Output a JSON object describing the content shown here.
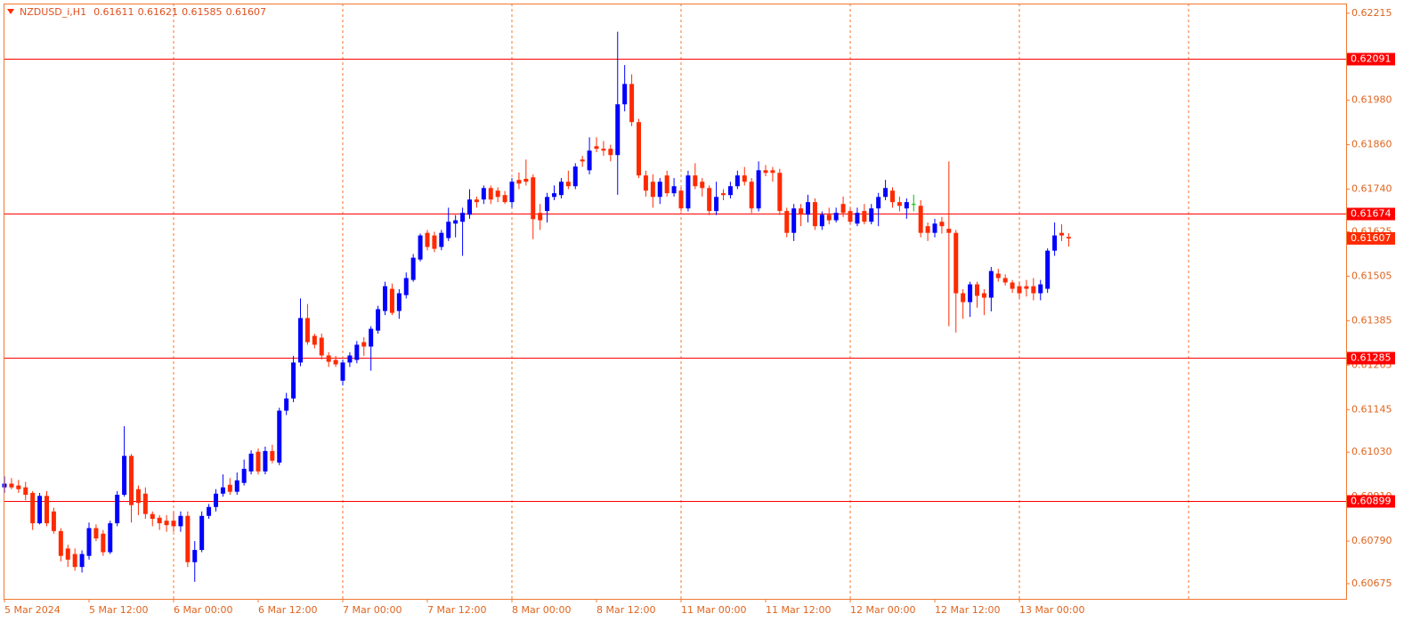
{
  "chart_data": {
    "type": "candlestick",
    "title": "NZDUSD_i,H1",
    "title_values": [
      0.61611,
      0.61621,
      0.61585,
      0.61607
    ],
    "x_labels": [
      "5 Mar 2024",
      "5 Mar 12:00",
      "6 Mar 00:00",
      "6 Mar 12:00",
      "7 Mar 00:00",
      "7 Mar 12:00",
      "8 Mar 00:00",
      "8 Mar 12:00",
      "11 Mar 00:00",
      "11 Mar 12:00",
      "12 Mar 00:00",
      "12 Mar 12:00",
      "13 Mar 00:00"
    ],
    "ylim": [
      0.60634,
      0.62241
    ],
    "yticks": [
      0.62215,
      {
        "value": 0.6198,
        "label": "0.61980"
      },
      {
        "value": 0.6186,
        "label": "0.61860"
      },
      {
        "value": 0.6174,
        "label": "0.61740"
      },
      0.61625,
      0.61505,
      0.61385,
      0.61265,
      0.61145,
      {
        "value": 0.6103,
        "label": "0.61030"
      },
      {
        "value": 0.6091,
        "label": "0.60910"
      },
      {
        "value": 0.6079,
        "label": "0.60790"
      },
      0.60675
    ],
    "levels": [
      0.62091,
      0.61674,
      0.61285,
      0.60899
    ],
    "price": 0.61607,
    "bull_color": "#0000ff",
    "bear_color": "#ff2a00",
    "doji_color": "#00c000",
    "level_color": "#ff0000",
    "candles": [
      [
        0.60935,
        0.60965,
        0.6092,
        0.60945
      ],
      [
        0.60945,
        0.6096,
        0.6093,
        0.60935
      ],
      [
        0.6094,
        0.60955,
        0.6092,
        0.6093
      ],
      [
        0.60935,
        0.6095,
        0.609,
        0.60915
      ],
      [
        0.6092,
        0.60925,
        0.6082,
        0.60838
      ],
      [
        0.60838,
        0.6092,
        0.60835,
        0.60912
      ],
      [
        0.60912,
        0.60925,
        0.6083,
        0.60838
      ],
      [
        0.6087,
        0.6088,
        0.6081,
        0.60817
      ],
      [
        0.60817,
        0.60825,
        0.60735,
        0.6075
      ],
      [
        0.6077,
        0.6078,
        0.6072,
        0.6074
      ],
      [
        0.60755,
        0.6077,
        0.6071,
        0.6072
      ],
      [
        0.6072,
        0.60765,
        0.60705,
        0.60755
      ],
      [
        0.6075,
        0.6084,
        0.6074,
        0.60825
      ],
      [
        0.60825,
        0.60835,
        0.6079,
        0.60797
      ],
      [
        0.6081,
        0.6082,
        0.6075,
        0.6076
      ],
      [
        0.6076,
        0.60845,
        0.60755,
        0.60838
      ],
      [
        0.60838,
        0.60925,
        0.6083,
        0.60915
      ],
      [
        0.60915,
        0.611,
        0.6091,
        0.6102
      ],
      [
        0.6102,
        0.61025,
        0.6084,
        0.60887
      ],
      [
        0.6093,
        0.6094,
        0.6086,
        0.60893
      ],
      [
        0.60918,
        0.60935,
        0.6085,
        0.60863
      ],
      [
        0.60863,
        0.6087,
        0.6083,
        0.6085
      ],
      [
        0.60853,
        0.6086,
        0.6082,
        0.60838
      ],
      [
        0.60845,
        0.6086,
        0.60815,
        0.60833
      ],
      [
        0.60845,
        0.6087,
        0.60815,
        0.6083
      ],
      [
        0.6083,
        0.6087,
        0.60815,
        0.60858
      ],
      [
        0.60858,
        0.6087,
        0.6072,
        0.60733
      ],
      [
        0.60733,
        0.6079,
        0.6068,
        0.60766
      ],
      [
        0.60766,
        0.6087,
        0.6076,
        0.60858
      ],
      [
        0.60858,
        0.6089,
        0.6085,
        0.60882
      ],
      [
        0.60882,
        0.6093,
        0.6087,
        0.60918
      ],
      [
        0.60918,
        0.6097,
        0.6091,
        0.60935
      ],
      [
        0.60942,
        0.6096,
        0.60915,
        0.60923
      ],
      [
        0.60923,
        0.60975,
        0.60915,
        0.60954
      ],
      [
        0.60947,
        0.6101,
        0.6094,
        0.60985
      ],
      [
        0.60978,
        0.61035,
        0.6097,
        0.61026
      ],
      [
        0.61031,
        0.6104,
        0.6097,
        0.60978
      ],
      [
        0.60978,
        0.61045,
        0.6097,
        0.61033
      ],
      [
        0.61033,
        0.6105,
        0.61,
        0.61007
      ],
      [
        0.61002,
        0.6115,
        0.60995,
        0.61142
      ],
      [
        0.61142,
        0.6119,
        0.6113,
        0.61175
      ],
      [
        0.61175,
        0.6129,
        0.61165,
        0.61272
      ],
      [
        0.61272,
        0.61445,
        0.61262,
        0.61392
      ],
      [
        0.61392,
        0.6143,
        0.6132,
        0.61327
      ],
      [
        0.61344,
        0.6135,
        0.6131,
        0.6132
      ],
      [
        0.61339,
        0.6135,
        0.6128,
        0.61291
      ],
      [
        0.61291,
        0.613,
        0.6126,
        0.61274
      ],
      [
        0.61279,
        0.6129,
        0.6126,
        0.61267
      ],
      [
        0.61223,
        0.6128,
        0.6121,
        0.61272
      ],
      [
        0.61272,
        0.613,
        0.6126,
        0.61291
      ],
      [
        0.61279,
        0.6133,
        0.6127,
        0.6132
      ],
      [
        0.61327,
        0.6134,
        0.6129,
        0.61315
      ],
      [
        0.61315,
        0.6137,
        0.6125,
        0.61363
      ],
      [
        0.61358,
        0.61425,
        0.6135,
        0.61416
      ],
      [
        0.61411,
        0.6149,
        0.614,
        0.61478
      ],
      [
        0.61471,
        0.61485,
        0.614,
        0.61406
      ],
      [
        0.61411,
        0.6147,
        0.6139,
        0.61459
      ],
      [
        0.61454,
        0.61515,
        0.61445,
        0.615
      ],
      [
        0.61495,
        0.61565,
        0.6149,
        0.61555
      ],
      [
        0.6155,
        0.6162,
        0.61545,
        0.61615
      ],
      [
        0.61622,
        0.6163,
        0.61575,
        0.61584
      ],
      [
        0.61615,
        0.61625,
        0.6157,
        0.61579
      ],
      [
        0.61584,
        0.6163,
        0.61575,
        0.61622
      ],
      [
        0.61608,
        0.6169,
        0.616,
        0.61652
      ],
      [
        0.61647,
        0.6167,
        0.6161,
        0.61656
      ],
      [
        0.61652,
        0.6169,
        0.6156,
        0.61676
      ],
      [
        0.61671,
        0.6174,
        0.6166,
        0.61712
      ],
      [
        0.61712,
        0.6172,
        0.6169,
        0.61705
      ],
      [
        0.61712,
        0.6175,
        0.617,
        0.61743
      ],
      [
        0.61743,
        0.6175,
        0.617,
        0.61712
      ],
      [
        0.61736,
        0.61745,
        0.61705,
        0.61719
      ],
      [
        0.61724,
        0.61735,
        0.617,
        0.61705
      ],
      [
        0.61705,
        0.6177,
        0.6169,
        0.6176
      ],
      [
        0.61765,
        0.61785,
        0.6174,
        0.61755
      ],
      [
        0.61768,
        0.6182,
        0.6175,
        0.6176
      ],
      [
        0.61772,
        0.6178,
        0.61605,
        0.61659
      ],
      [
        0.61676,
        0.617,
        0.6163,
        0.61656
      ],
      [
        0.61681,
        0.6173,
        0.6165,
        0.61719
      ],
      [
        0.61719,
        0.6175,
        0.6171,
        0.61729
      ],
      [
        0.61724,
        0.6177,
        0.61715,
        0.6176
      ],
      [
        0.6176,
        0.6179,
        0.6174,
        0.61748
      ],
      [
        0.61748,
        0.6181,
        0.6174,
        0.61801
      ],
      [
        0.6182,
        0.6183,
        0.618,
        0.61815
      ],
      [
        0.61791,
        0.6188,
        0.6178,
        0.61844
      ],
      [
        0.61856,
        0.6188,
        0.6184,
        0.61849
      ],
      [
        0.61849,
        0.6187,
        0.6183,
        0.61844
      ],
      [
        0.61849,
        0.6186,
        0.61815,
        0.61832
      ],
      [
        0.61832,
        0.62165,
        0.61725,
        0.61969
      ],
      [
        0.61969,
        0.62075,
        0.6195,
        0.62024
      ],
      [
        0.62024,
        0.6205,
        0.6191,
        0.61921
      ],
      [
        0.61921,
        0.6193,
        0.6177,
        0.61777
      ],
      [
        0.61777,
        0.6179,
        0.6172,
        0.61736
      ],
      [
        0.6176,
        0.6178,
        0.6169,
        0.61719
      ],
      [
        0.61719,
        0.6177,
        0.617,
        0.6176
      ],
      [
        0.61777,
        0.6179,
        0.6172,
        0.61729
      ],
      [
        0.61729,
        0.6177,
        0.6172,
        0.61748
      ],
      [
        0.61736,
        0.61745,
        0.6168,
        0.61688
      ],
      [
        0.61688,
        0.6179,
        0.6168,
        0.61777
      ],
      [
        0.61777,
        0.6181,
        0.6174,
        0.61748
      ],
      [
        0.6176,
        0.6177,
        0.6172,
        0.61743
      ],
      [
        0.61743,
        0.6175,
        0.6167,
        0.61681
      ],
      [
        0.61681,
        0.6176,
        0.6167,
        0.61719
      ],
      [
        0.61729,
        0.6174,
        0.6171,
        0.61724
      ],
      [
        0.61724,
        0.6176,
        0.61715,
        0.61748
      ],
      [
        0.61748,
        0.6179,
        0.6174,
        0.61777
      ],
      [
        0.61777,
        0.618,
        0.6175,
        0.6176
      ],
      [
        0.6176,
        0.6177,
        0.61675,
        0.61688
      ],
      [
        0.61688,
        0.61815,
        0.6168,
        0.61791
      ],
      [
        0.61791,
        0.61805,
        0.61775,
        0.61784
      ],
      [
        0.61791,
        0.618,
        0.6176,
        0.61784
      ],
      [
        0.61784,
        0.61795,
        0.6167,
        0.61681
      ],
      [
        0.61681,
        0.6169,
        0.6161,
        0.61622
      ],
      [
        0.61622,
        0.617,
        0.616,
        0.61688
      ],
      [
        0.61688,
        0.617,
        0.6164,
        0.61671
      ],
      [
        0.61671,
        0.61725,
        0.6165,
        0.61705
      ],
      [
        0.61705,
        0.61715,
        0.6163,
        0.6164
      ],
      [
        0.6164,
        0.6168,
        0.6163,
        0.61671
      ],
      [
        0.61671,
        0.6169,
        0.61645,
        0.61656
      ],
      [
        0.61656,
        0.6169,
        0.6165,
        0.61676
      ],
      [
        0.617,
        0.6172,
        0.61665,
        0.61676
      ],
      [
        0.61681,
        0.6169,
        0.61645,
        0.61652
      ],
      [
        0.61647,
        0.6169,
        0.6164,
        0.61676
      ],
      [
        0.61681,
        0.617,
        0.61645,
        0.61652
      ],
      [
        0.61652,
        0.617,
        0.61645,
        0.61688
      ],
      [
        0.61688,
        0.6173,
        0.6164,
        0.61719
      ],
      [
        0.61719,
        0.61765,
        0.6171,
        0.61743
      ],
      [
        0.61736,
        0.61745,
        0.6169,
        0.61705
      ],
      [
        0.61705,
        0.6172,
        0.6168,
        0.61695
      ],
      [
        0.61688,
        0.61715,
        0.6166,
        0.61705
      ],
      [
        0.617,
        0.61725,
        0.6168,
        0.617
      ],
      [
        0.61695,
        0.6171,
        0.6161,
        0.61622
      ],
      [
        0.6164,
        0.6165,
        0.616,
        0.61622
      ],
      [
        0.61622,
        0.6166,
        0.6161,
        0.61647
      ],
      [
        0.61652,
        0.61665,
        0.6162,
        0.6164
      ],
      [
        0.61633,
        0.61815,
        0.6137,
        0.61622
      ],
      [
        0.61622,
        0.6163,
        0.61353,
        0.61459
      ],
      [
        0.61459,
        0.6147,
        0.6139,
        0.61435
      ],
      [
        0.61435,
        0.6149,
        0.61395,
        0.61483
      ],
      [
        0.61483,
        0.6149,
        0.6142,
        0.61452
      ],
      [
        0.61459,
        0.6147,
        0.614,
        0.61447
      ],
      [
        0.61447,
        0.6153,
        0.6141,
        0.61519
      ],
      [
        0.61512,
        0.61525,
        0.6149,
        0.615
      ],
      [
        0.615,
        0.6151,
        0.6148,
        0.61488
      ],
      [
        0.61488,
        0.61495,
        0.6146,
        0.61471
      ],
      [
        0.61478,
        0.6149,
        0.61445,
        0.61459
      ],
      [
        0.61478,
        0.61495,
        0.6145,
        0.61471
      ],
      [
        0.61478,
        0.615,
        0.6144,
        0.61459
      ],
      [
        0.61459,
        0.61495,
        0.6144,
        0.61483
      ],
      [
        0.61471,
        0.6158,
        0.6146,
        0.61574
      ],
      [
        0.61574,
        0.6165,
        0.6156,
        0.61615
      ],
      [
        0.61622,
        0.61645,
        0.616,
        0.61615
      ],
      [
        0.61611,
        0.61621,
        0.61585,
        0.61607
      ]
    ]
  }
}
